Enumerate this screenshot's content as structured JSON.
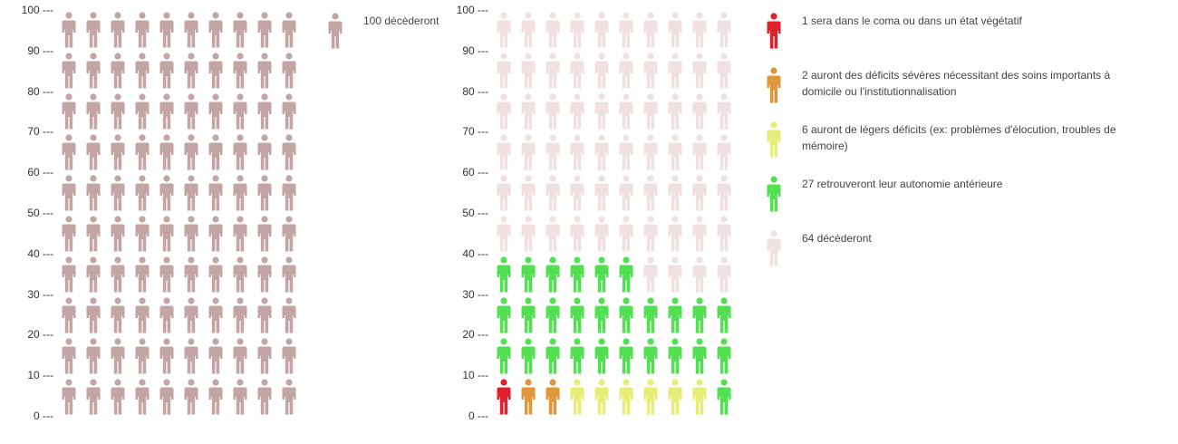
{
  "chart_data": [
    {
      "type": "pictogram",
      "title": "",
      "axis": {
        "ticks": [
          "0 ---",
          "10 ---",
          "20 ---",
          "30 ---",
          "40 ---",
          "50 ---",
          "60 ---",
          "70 ---",
          "80 ---",
          "90 ---",
          "100 ---"
        ],
        "range": [
          0,
          100
        ]
      },
      "grid": {
        "rows": 10,
        "cols": 10,
        "fill_order": "bottom-left, rows left-to-right"
      },
      "categories": [
        {
          "label": "100 décèderont",
          "count": 100,
          "color": "#c3a5a5"
        }
      ]
    },
    {
      "type": "pictogram",
      "title": "",
      "axis": {
        "ticks": [
          "0 ---",
          "10 ---",
          "20 ---",
          "30 ---",
          "40 ---",
          "50 ---",
          "60 ---",
          "70 ---",
          "80 ---",
          "90 ---",
          "100 ---"
        ],
        "range": [
          0,
          100
        ]
      },
      "grid": {
        "rows": 10,
        "cols": 10,
        "fill_order": "bottom-left, rows left-to-right"
      },
      "categories": [
        {
          "label": "1 sera dans le coma ou dans un état végétatif",
          "count": 1,
          "color": "#e0202b"
        },
        {
          "label": "2 auront des déficits sévères nécessitant des soins importants à domicile ou l'institutionnalisation",
          "count": 2,
          "color": "#e0963a"
        },
        {
          "label": "6 auront de légers déficits (ex: problèmes d'élocution, troubles de mémoire)",
          "count": 6,
          "color": "#e6ee78"
        },
        {
          "label": "27 retrouveront leur autonomie antérieure",
          "count": 27,
          "color": "#52e052"
        },
        {
          "label": "64 décèderont",
          "count": 64,
          "color": "#f0e0e0"
        }
      ]
    }
  ]
}
